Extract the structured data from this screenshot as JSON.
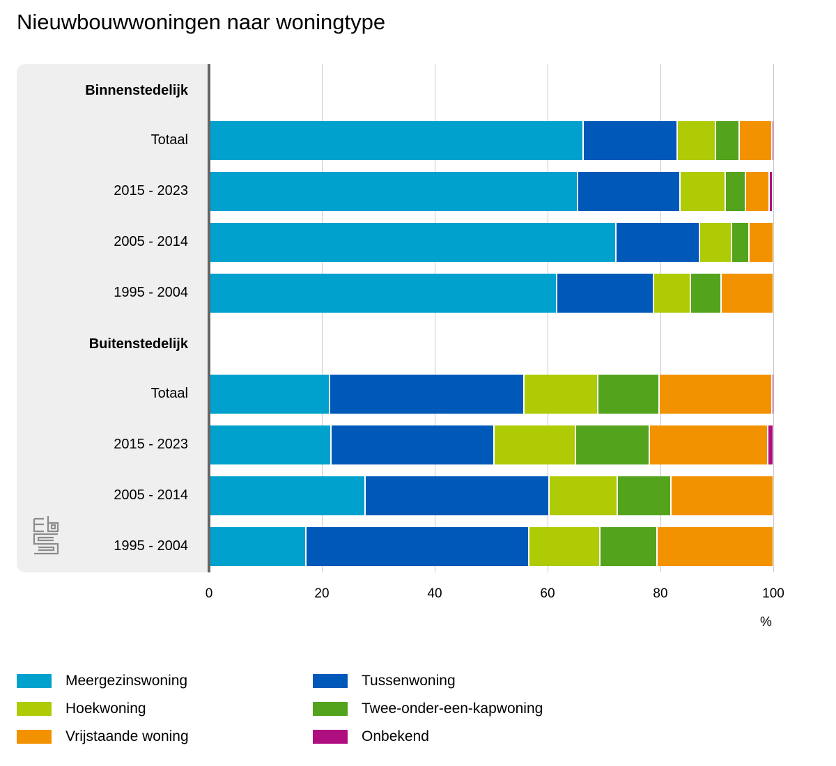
{
  "chart_data": {
    "type": "bar",
    "orientation": "horizontal",
    "stacked": true,
    "title": "Nieuwbouwwoningen naar woningtype",
    "xlabel": "%",
    "ylabel": "",
    "xlim": [
      0,
      100
    ],
    "xticks": [
      "0",
      "20",
      "40",
      "60",
      "80",
      "100"
    ],
    "grid": true,
    "legend_position": "bottom",
    "groups": [
      {
        "label": "Binnenstedelijk",
        "categories": [
          "Totaal",
          "2015 - 2023",
          "2005 - 2014",
          "1995 - 2004"
        ]
      },
      {
        "label": "Buitenstedelijk",
        "categories": [
          "Totaal",
          "2015 - 2023",
          "2005 - 2014",
          "1995 - 2004"
        ]
      }
    ],
    "series": [
      {
        "name": "Meergezinswoning",
        "color": "#00a1cd",
        "values": [
          66.3,
          65.3,
          72.1,
          61.6,
          21.4,
          21.6,
          27.7,
          17.2
        ]
      },
      {
        "name": "Tussenwoning",
        "color": "#0058b8",
        "values": [
          16.7,
          18.1,
          14.8,
          17.2,
          34.4,
          28.9,
          32.5,
          39.5
        ]
      },
      {
        "name": "Hoekwoning",
        "color": "#afcb05",
        "values": [
          6.7,
          8.1,
          5.7,
          6.5,
          13.1,
          14.4,
          12.1,
          12.6
        ]
      },
      {
        "name": "Twee-onder-een-kapwoning",
        "color": "#53a31d",
        "values": [
          4.3,
          3.6,
          3.1,
          5.4,
          10.9,
          13.1,
          9.6,
          10.1
        ]
      },
      {
        "name": "Vrijstaande woning",
        "color": "#f39200",
        "values": [
          5.7,
          4.2,
          4.3,
          9.3,
          19.9,
          21.0,
          18.1,
          20.6
        ]
      },
      {
        "name": "Onbekend",
        "color": "#af0e80",
        "values": [
          0.3,
          0.6,
          0.0,
          0.0,
          0.4,
          1.0,
          0.0,
          0.0
        ]
      }
    ]
  },
  "legend": {
    "items": [
      {
        "label": "Meergezinswoning",
        "color": "#00a1cd"
      },
      {
        "label": "Tussenwoning",
        "color": "#0058b8"
      },
      {
        "label": "Hoekwoning",
        "color": "#afcb05"
      },
      {
        "label": "Twee-onder-een-kapwoning",
        "color": "#53a31d"
      },
      {
        "label": "Vrijstaande woning",
        "color": "#f39200"
      },
      {
        "label": "Onbekend",
        "color": "#af0e80"
      }
    ]
  },
  "logo": {
    "icon": "cbs-logo-icon"
  }
}
